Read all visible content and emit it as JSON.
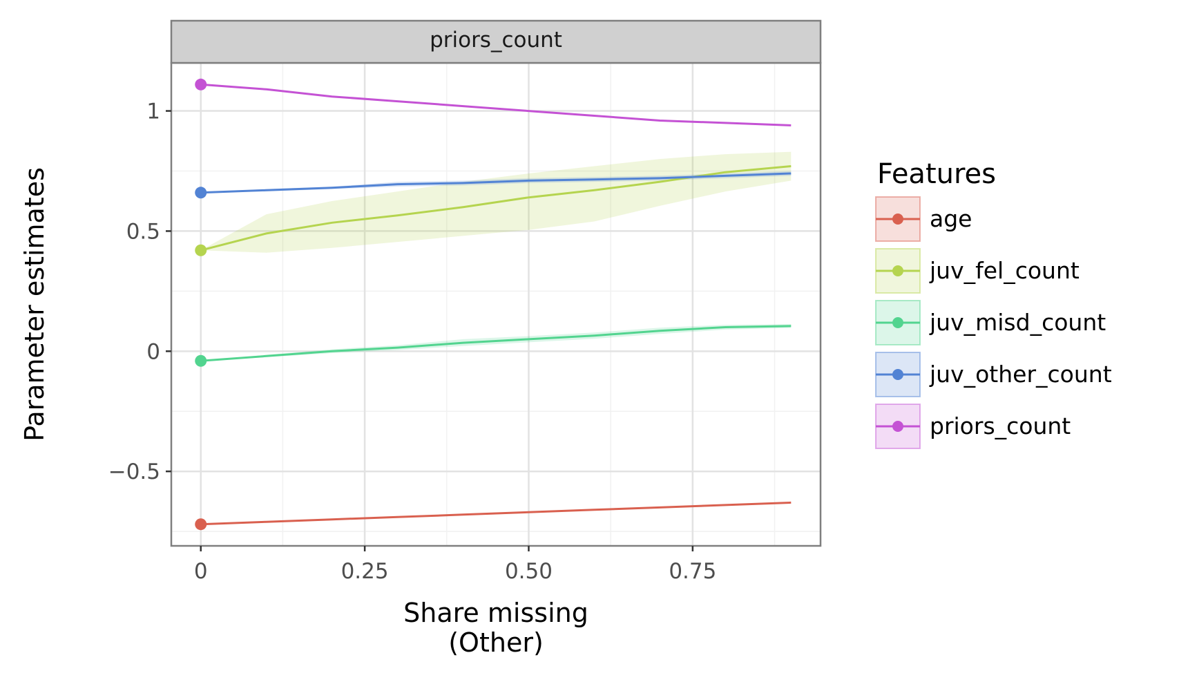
{
  "chart_data": {
    "type": "line",
    "facet_label": "priors_count",
    "xlabel_lines": [
      "Share missing",
      "(Other)"
    ],
    "ylabel": "Parameter estimates",
    "xlim": [
      -0.045,
      0.945
    ],
    "ylim": [
      -0.81,
      1.2
    ],
    "x_ticks": [
      {
        "value": 0,
        "label": "0"
      },
      {
        "value": 0.25,
        "label": "0.25"
      },
      {
        "value": 0.5,
        "label": "0.50"
      },
      {
        "value": 0.75,
        "label": "0.75"
      }
    ],
    "x_minor": [
      0.125,
      0.375,
      0.625,
      0.875
    ],
    "y_ticks": [
      {
        "value": -0.5,
        "label": "−0.5"
      },
      {
        "value": 0,
        "label": "0"
      },
      {
        "value": 0.5,
        "label": "0.5"
      },
      {
        "value": 1,
        "label": "1"
      }
    ],
    "y_minor": [
      -0.75,
      -0.25,
      0.25,
      0.75
    ],
    "grid": true,
    "legend": {
      "title": "Features",
      "position": "right"
    },
    "x": [
      0,
      0.1,
      0.2,
      0.3,
      0.4,
      0.5,
      0.6,
      0.7,
      0.8,
      0.9
    ],
    "series": [
      {
        "name": "age",
        "color": "#d9604f",
        "values": [
          -0.72,
          -0.71,
          -0.7,
          -0.69,
          -0.68,
          -0.67,
          -0.66,
          -0.65,
          -0.64,
          -0.63
        ],
        "lower": [
          -0.72,
          -0.713,
          -0.703,
          -0.693,
          -0.683,
          -0.673,
          -0.663,
          -0.653,
          -0.643,
          -0.633
        ],
        "upper": [
          -0.72,
          -0.707,
          -0.697,
          -0.687,
          -0.677,
          -0.667,
          -0.657,
          -0.647,
          -0.637,
          -0.627
        ]
      },
      {
        "name": "juv_fel_count",
        "color": "#b5d44f",
        "values": [
          0.42,
          0.49,
          0.535,
          0.565,
          0.6,
          0.64,
          0.67,
          0.705,
          0.745,
          0.77
        ],
        "lower": [
          0.42,
          0.41,
          0.43,
          0.455,
          0.48,
          0.505,
          0.54,
          0.605,
          0.665,
          0.71
        ],
        "upper": [
          0.42,
          0.57,
          0.625,
          0.665,
          0.705,
          0.74,
          0.77,
          0.8,
          0.82,
          0.83
        ]
      },
      {
        "name": "juv_misd_count",
        "color": "#52d48f",
        "values": [
          -0.04,
          -0.02,
          0.0,
          0.015,
          0.035,
          0.05,
          0.065,
          0.085,
          0.1,
          0.105
        ],
        "lower": [
          -0.04,
          -0.025,
          -0.008,
          0.005,
          0.022,
          0.037,
          0.052,
          0.072,
          0.09,
          0.097
        ],
        "upper": [
          -0.04,
          -0.015,
          0.008,
          0.025,
          0.05,
          0.063,
          0.078,
          0.098,
          0.11,
          0.113
        ]
      },
      {
        "name": "juv_other_count",
        "color": "#5283d4",
        "values": [
          0.66,
          0.67,
          0.68,
          0.695,
          0.7,
          0.71,
          0.715,
          0.72,
          0.73,
          0.74
        ],
        "lower": [
          0.66,
          0.665,
          0.675,
          0.685,
          0.69,
          0.7,
          0.705,
          0.71,
          0.72,
          0.73
        ],
        "upper": [
          0.66,
          0.675,
          0.685,
          0.705,
          0.71,
          0.72,
          0.725,
          0.73,
          0.74,
          0.75
        ]
      },
      {
        "name": "priors_count",
        "color": "#c452d4",
        "values": [
          1.11,
          1.09,
          1.06,
          1.04,
          1.02,
          1.0,
          0.98,
          0.96,
          0.95,
          0.94
        ],
        "lower": [
          1.11,
          1.09,
          1.06,
          1.04,
          1.02,
          1.0,
          0.98,
          0.96,
          0.95,
          0.94
        ],
        "upper": [
          1.11,
          1.09,
          1.06,
          1.04,
          1.02,
          1.0,
          0.98,
          0.96,
          0.95,
          0.94
        ]
      }
    ]
  }
}
